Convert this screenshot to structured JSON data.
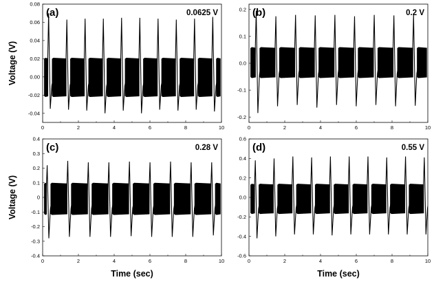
{
  "chart_data": [
    {
      "type": "line",
      "panel": "(a)",
      "annotation": "0.0625 V",
      "xlabel": "",
      "ylabel": "Voltage (V)",
      "xlim": [
        0,
        10
      ],
      "ylim": [
        -0.05,
        0.08
      ],
      "xticks": [
        0,
        2,
        4,
        6,
        8,
        10
      ],
      "xtick_labels": [
        "0",
        "2",
        "4",
        "6",
        "8",
        "10"
      ],
      "yticks": [
        -0.04,
        -0.02,
        0.0,
        0.02,
        0.04,
        0.06,
        0.08
      ],
      "ytick_labels": [
        "-0.04",
        "-0.02",
        "0.00",
        "0.02",
        "0.04",
        "0.06",
        "0.08"
      ],
      "series": [
        {
          "band": [
            -0.022,
            0.021
          ],
          "spikes": [
            {
              "t": 0.38,
              "max": 0.07,
              "min": -0.035
            },
            {
              "t": 1.4,
              "max": 0.063,
              "min": -0.036
            },
            {
              "t": 2.42,
              "max": 0.064,
              "min": -0.037
            },
            {
              "t": 3.44,
              "max": 0.064,
              "min": -0.04
            },
            {
              "t": 4.46,
              "max": 0.065,
              "min": -0.037
            },
            {
              "t": 5.48,
              "max": 0.065,
              "min": -0.04
            },
            {
              "t": 6.5,
              "max": 0.064,
              "min": -0.036
            },
            {
              "t": 7.52,
              "max": 0.063,
              "min": -0.037
            },
            {
              "t": 8.54,
              "max": 0.064,
              "min": -0.036
            },
            {
              "t": 9.56,
              "max": 0.066,
              "min": -0.038
            }
          ]
        }
      ]
    },
    {
      "type": "line",
      "panel": "(b)",
      "annotation": "0.2 V",
      "xlabel": "",
      "ylabel": "",
      "xlim": [
        0,
        10
      ],
      "ylim": [
        -0.22,
        0.22
      ],
      "xticks": [
        0,
        2,
        4,
        6,
        8,
        10
      ],
      "xtick_labels": [
        "0",
        "2",
        "4",
        "6",
        "8",
        "10"
      ],
      "yticks": [
        -0.2,
        -0.1,
        0.0,
        0.1,
        0.2
      ],
      "ytick_labels": [
        "-0.2",
        "-0.1",
        "0.0",
        "0.1",
        "0.2"
      ],
      "series": [
        {
          "band": [
            -0.055,
            0.06
          ],
          "spikes": [
            {
              "t": 0.45,
              "max": 0.195,
              "min": -0.185
            },
            {
              "t": 1.55,
              "max": 0.175,
              "min": -0.16
            },
            {
              "t": 2.65,
              "max": 0.18,
              "min": -0.155
            },
            {
              "t": 3.75,
              "max": 0.178,
              "min": -0.165
            },
            {
              "t": 4.85,
              "max": 0.18,
              "min": -0.155
            },
            {
              "t": 5.95,
              "max": 0.175,
              "min": -0.16
            },
            {
              "t": 7.05,
              "max": 0.18,
              "min": -0.155
            },
            {
              "t": 8.15,
              "max": 0.178,
              "min": -0.16
            },
            {
              "t": 9.25,
              "max": 0.18,
              "min": -0.158
            }
          ]
        }
      ]
    },
    {
      "type": "line",
      "panel": "(c)",
      "annotation": "0.28 V",
      "xlabel": "Time (sec)",
      "ylabel": "Voltage (V)",
      "xlim": [
        0,
        10
      ],
      "ylim": [
        -0.4,
        0.4
      ],
      "xticks": [
        0,
        2,
        4,
        6,
        8,
        10
      ],
      "xtick_labels": [
        "0",
        "2",
        "4",
        "6",
        "8",
        "10"
      ],
      "yticks": [
        -0.4,
        -0.3,
        -0.2,
        -0.1,
        0.0,
        0.1,
        0.2,
        0.3,
        0.4
      ],
      "ytick_labels": [
        "-0.4",
        "-0.3",
        "-0.2",
        "-0.1",
        "0",
        "0.1",
        "0.2",
        "0.3",
        "0.4"
      ],
      "series": [
        {
          "band": [
            -0.12,
            0.1
          ],
          "spikes": [
            {
              "t": 0.3,
              "max": 0.22,
              "min": -0.28
            },
            {
              "t": 1.45,
              "max": 0.25,
              "min": -0.27
            },
            {
              "t": 2.6,
              "max": 0.24,
              "min": -0.27
            },
            {
              "t": 3.75,
              "max": 0.24,
              "min": -0.27
            },
            {
              "t": 4.9,
              "max": 0.245,
              "min": -0.265
            },
            {
              "t": 6.05,
              "max": 0.24,
              "min": -0.27
            },
            {
              "t": 7.2,
              "max": 0.245,
              "min": -0.27
            },
            {
              "t": 8.35,
              "max": 0.24,
              "min": -0.27
            },
            {
              "t": 9.5,
              "max": 0.24,
              "min": -0.26
            }
          ]
        }
      ]
    },
    {
      "type": "line",
      "panel": "(d)",
      "annotation": "0.55 V",
      "xlabel": "Time (sec)",
      "ylabel": "",
      "xlim": [
        0,
        10
      ],
      "ylim": [
        -0.6,
        0.6
      ],
      "xticks": [
        0,
        2,
        4,
        6,
        8,
        10
      ],
      "xtick_labels": [
        "0",
        "2",
        "4",
        "6",
        "8",
        "10"
      ],
      "yticks": [
        -0.6,
        -0.4,
        -0.2,
        0.0,
        0.2,
        0.4,
        0.6
      ],
      "ytick_labels": [
        "-0.6",
        "-0.4",
        "-0.2",
        "0.0",
        "0.2",
        "0.4",
        "0.6"
      ],
      "series": [
        {
          "band": [
            -0.17,
            0.14
          ],
          "spikes": [
            {
              "t": 0.4,
              "max": 0.38,
              "min": -0.42
            },
            {
              "t": 1.45,
              "max": 0.4,
              "min": -0.4
            },
            {
              "t": 2.5,
              "max": 0.42,
              "min": -0.38
            },
            {
              "t": 3.55,
              "max": 0.41,
              "min": -0.38
            },
            {
              "t": 4.6,
              "max": 0.42,
              "min": -0.39
            },
            {
              "t": 5.65,
              "max": 0.42,
              "min": -0.38
            },
            {
              "t": 6.7,
              "max": 0.42,
              "min": -0.38
            },
            {
              "t": 7.75,
              "max": 0.41,
              "min": -0.38
            },
            {
              "t": 8.8,
              "max": 0.42,
              "min": -0.38
            },
            {
              "t": 9.85,
              "max": 0.41,
              "min": -0.38
            }
          ]
        }
      ]
    }
  ]
}
